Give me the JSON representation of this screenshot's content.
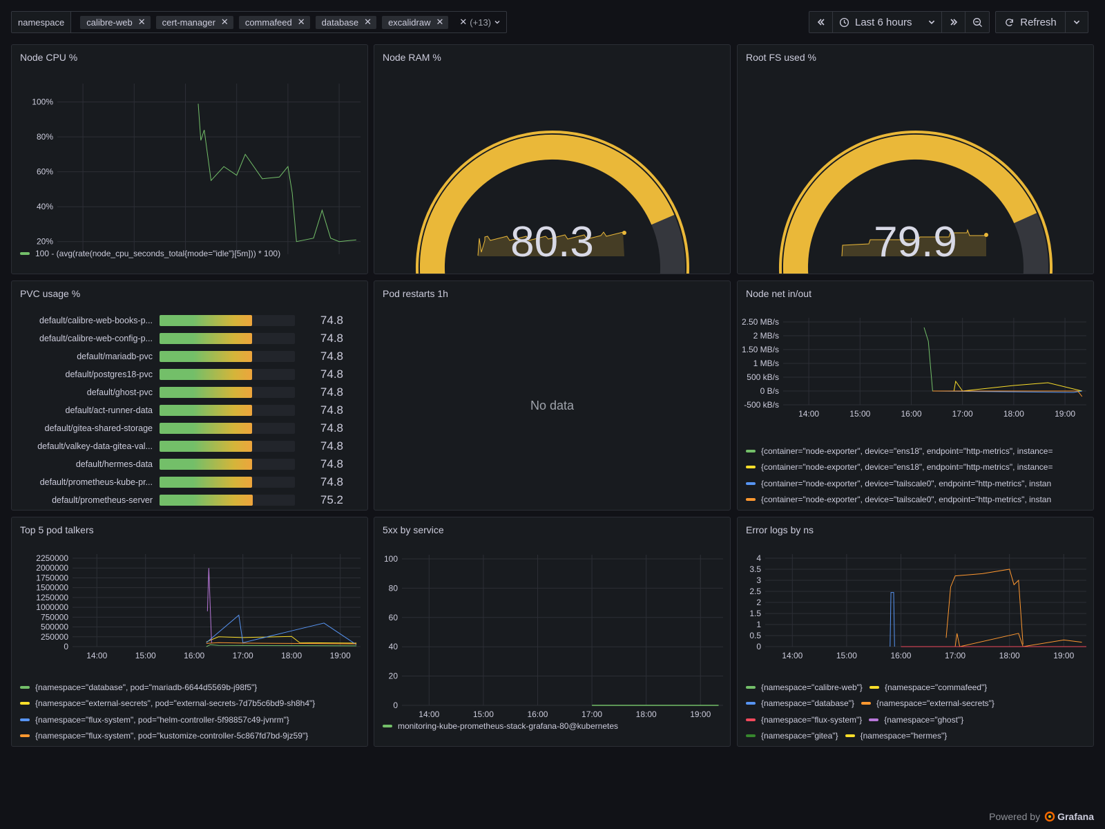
{
  "variables": {
    "label": "namespace",
    "chips": [
      "calibre-web",
      "cert-manager",
      "commafeed",
      "database",
      "excalidraw"
    ],
    "more": "(+13)"
  },
  "timepicker": {
    "range": "Last 6 hours",
    "refresh": "Refresh"
  },
  "icons": {
    "shift_back": "double-chevron-left-icon",
    "clock": "clock-icon",
    "chevron": "chevron-down-icon",
    "shift_fwd": "double-chevron-right-icon",
    "zoom": "zoom-out-icon",
    "refresh": "refresh-icon",
    "remove": "close-icon"
  },
  "colors": {
    "green": "#73bf69",
    "yellow": "#fade2a",
    "blue": "#5794f2",
    "orange": "#ff9830",
    "red": "#f2495c",
    "purple": "#b877d9",
    "darkgreen": "#37872d",
    "gold": "#eab839"
  },
  "time_ticks": [
    "14:00",
    "15:00",
    "16:00",
    "17:00",
    "18:00",
    "19:00"
  ],
  "panels": {
    "cpu": {
      "title": "Node CPU %",
      "legend": "100 - (avg(rate(node_cpu_seconds_total{mode=\"idle\"}[5m])) * 100)"
    },
    "ram": {
      "title": "Node RAM %",
      "value": "80.3"
    },
    "rootfs": {
      "title": "Root FS used %",
      "value": "79.9"
    },
    "pvc": {
      "title": "PVC usage %"
    },
    "restarts": {
      "title": "Pod restarts 1h",
      "nodata": "No data"
    },
    "net": {
      "title": "Node net in/out",
      "legend": [
        "{container=\"node-exporter\", device=\"ens18\", endpoint=\"http-metrics\", instance=",
        "{container=\"node-exporter\", device=\"ens18\", endpoint=\"http-metrics\", instance=",
        "{container=\"node-exporter\", device=\"tailscale0\", endpoint=\"http-metrics\", instan",
        "{container=\"node-exporter\", device=\"tailscale0\", endpoint=\"http-metrics\", instan"
      ]
    },
    "talkers": {
      "title": "Top 5 pod talkers",
      "legend": [
        "{namespace=\"database\", pod=\"mariadb-6644d5569b-j98f5\"}",
        "{namespace=\"external-secrets\", pod=\"external-secrets-7d7b5c6bd9-sh8h4\"}",
        "{namespace=\"flux-system\", pod=\"helm-controller-5f98857c49-jvnrm\"}",
        "{namespace=\"flux-system\", pod=\"kustomize-controller-5c867fd7bd-9jz59\"}"
      ]
    },
    "fivexx": {
      "title": "5xx by service",
      "legend": "monitoring-kube-prometheus-stack-grafana-80@kubernetes"
    },
    "errlogs": {
      "title": "Error logs by ns",
      "legend": [
        [
          "{namespace=\"calibre-web\"}",
          "{namespace=\"commafeed\"}"
        ],
        [
          "{namespace=\"database\"}",
          "{namespace=\"external-secrets\"}"
        ],
        [
          "{namespace=\"flux-system\"}",
          "{namespace=\"ghost\"}"
        ],
        [
          "{namespace=\"gitea\"}",
          "{namespace=\"hermes\"}"
        ]
      ]
    }
  },
  "chart_data": [
    {
      "type": "line",
      "x": [
        "16:15",
        "16:18",
        "16:22",
        "16:30",
        "16:45",
        "17:00",
        "17:10",
        "17:30",
        "17:50",
        "18:00",
        "18:05",
        "18:10",
        "18:30",
        "18:40",
        "18:50",
        "19:00",
        "19:20"
      ],
      "series": [
        {
          "name": "100 - (avg(rate(node_cpu_seconds_total{mode=\"idle\"}[5m])) * 100)",
          "values": [
            99,
            78,
            84,
            55,
            63,
            58,
            70,
            56,
            57,
            63,
            48,
            20,
            22,
            38,
            22,
            20,
            21
          ]
        }
      ],
      "y_ticks": [
        "20%",
        "40%",
        "60%",
        "80%",
        "100%"
      ],
      "xlabel": "",
      "ylabel": ""
    },
    {
      "type": "gauge",
      "value": 80.3,
      "max": 100
    },
    {
      "type": "gauge",
      "value": 79.9,
      "max": 100
    },
    {
      "type": "bar",
      "categories": [
        "default/calibre-web-books-p...",
        "default/calibre-web-config-p...",
        "default/mariadb-pvc",
        "default/postgres18-pvc",
        "default/ghost-pvc",
        "default/act-runner-data",
        "default/gitea-shared-storage",
        "default/valkey-data-gitea-val...",
        "default/hermes-data",
        "default/prometheus-kube-pr...",
        "default/prometheus-server"
      ],
      "values": [
        74.8,
        74.8,
        74.8,
        74.8,
        74.8,
        74.8,
        74.8,
        74.8,
        74.8,
        74.8,
        75.2
      ]
    },
    {
      "type": "line",
      "y_ticks": [
        "-500 kB/s",
        "0 B/s",
        "500 kB/s",
        "1 MB/s",
        "1.50 MB/s",
        "2 MB/s",
        "2.50 MB/s"
      ],
      "series": [
        {
          "values_x": [
            "16:15",
            "16:20",
            "16:25",
            "19:20"
          ],
          "values_y_kBps": [
            2300,
            1800,
            0,
            0
          ]
        },
        {
          "values_x": [
            "16:25",
            "16:50",
            "16:52",
            "17:00",
            "18:00",
            "18:40",
            "19:20"
          ],
          "values_y_kBps": [
            0,
            0,
            350,
            0,
            200,
            300,
            0
          ]
        },
        {
          "values_x": [
            "16:25",
            "19:10",
            "19:20"
          ],
          "values_y_kBps": [
            0,
            -50,
            0
          ]
        },
        {
          "values_x": [
            "16:25",
            "19:15",
            "19:20"
          ],
          "values_y_kBps": [
            0,
            0,
            -200
          ]
        }
      ]
    },
    {
      "type": "line",
      "y_ticks": [
        "0",
        "250000",
        "500000",
        "750000",
        "1000000",
        "1250000",
        "1500000",
        "1750000",
        "2000000",
        "2250000"
      ],
      "series": [
        {
          "values_x": [
            "16:15",
            "16:20",
            "16:30",
            "19:20"
          ],
          "values": [
            0,
            50000,
            30000,
            20000
          ]
        },
        {
          "values_x": [
            "16:15",
            "16:30",
            "17:00",
            "18:00",
            "18:10",
            "19:20"
          ],
          "values": [
            120000,
            250000,
            230000,
            260000,
            100000,
            90000
          ]
        },
        {
          "values_x": [
            "16:15",
            "16:55",
            "17:00",
            "18:00",
            "18:40",
            "19:20"
          ],
          "values": [
            100000,
            800000,
            100000,
            400000,
            600000,
            50000
          ]
        },
        {
          "values_x": [
            "16:15",
            "16:30",
            "17:00",
            "18:00",
            "19:20"
          ],
          "values": [
            80000,
            100000,
            90000,
            80000,
            70000
          ]
        }
      ]
    },
    {
      "type": "line",
      "x_ticks": [
        "14:00",
        "15:00",
        "16:00",
        "17:00",
        "18:00",
        "19:00"
      ],
      "y_ticks": [
        "0",
        "20",
        "40",
        "60",
        "80",
        "100"
      ],
      "series": [
        {
          "name": "monitoring-kube-prometheus-stack-grafana-80@kubernetes",
          "values_x": [
            "17:00",
            "19:20"
          ],
          "values": [
            0,
            0
          ]
        }
      ]
    },
    {
      "type": "line",
      "y_ticks": [
        "0",
        "0.5",
        "1",
        "1.5",
        "2",
        "2.5",
        "3",
        "3.5",
        "4"
      ],
      "series": [
        {
          "name": "{namespace=\"commafeed\"}",
          "values_x": [
            "16:50",
            "16:55",
            "17:00",
            "17:30",
            "18:00",
            "18:05",
            "18:10",
            "18:15"
          ],
          "values": [
            0.4,
            2.7,
            3.2,
            3.3,
            3.5,
            2.8,
            3.0,
            0.1
          ]
        },
        {
          "name": "{namespace=\"database\"}",
          "values_x": [
            "15:48",
            "15:49",
            "15:52",
            "15:53"
          ],
          "values": [
            0,
            2.45,
            2.45,
            0
          ]
        },
        {
          "name": "{namespace=\"external-secrets\"}",
          "values_x": [
            "17:00",
            "17:02",
            "17:05",
            "18:10",
            "18:15",
            "19:00",
            "19:20"
          ],
          "values": [
            0,
            0.6,
            0,
            0.6,
            0,
            0.3,
            0.2
          ]
        }
      ]
    }
  ],
  "footer": {
    "text": "Powered by",
    "brand": "Grafana"
  }
}
